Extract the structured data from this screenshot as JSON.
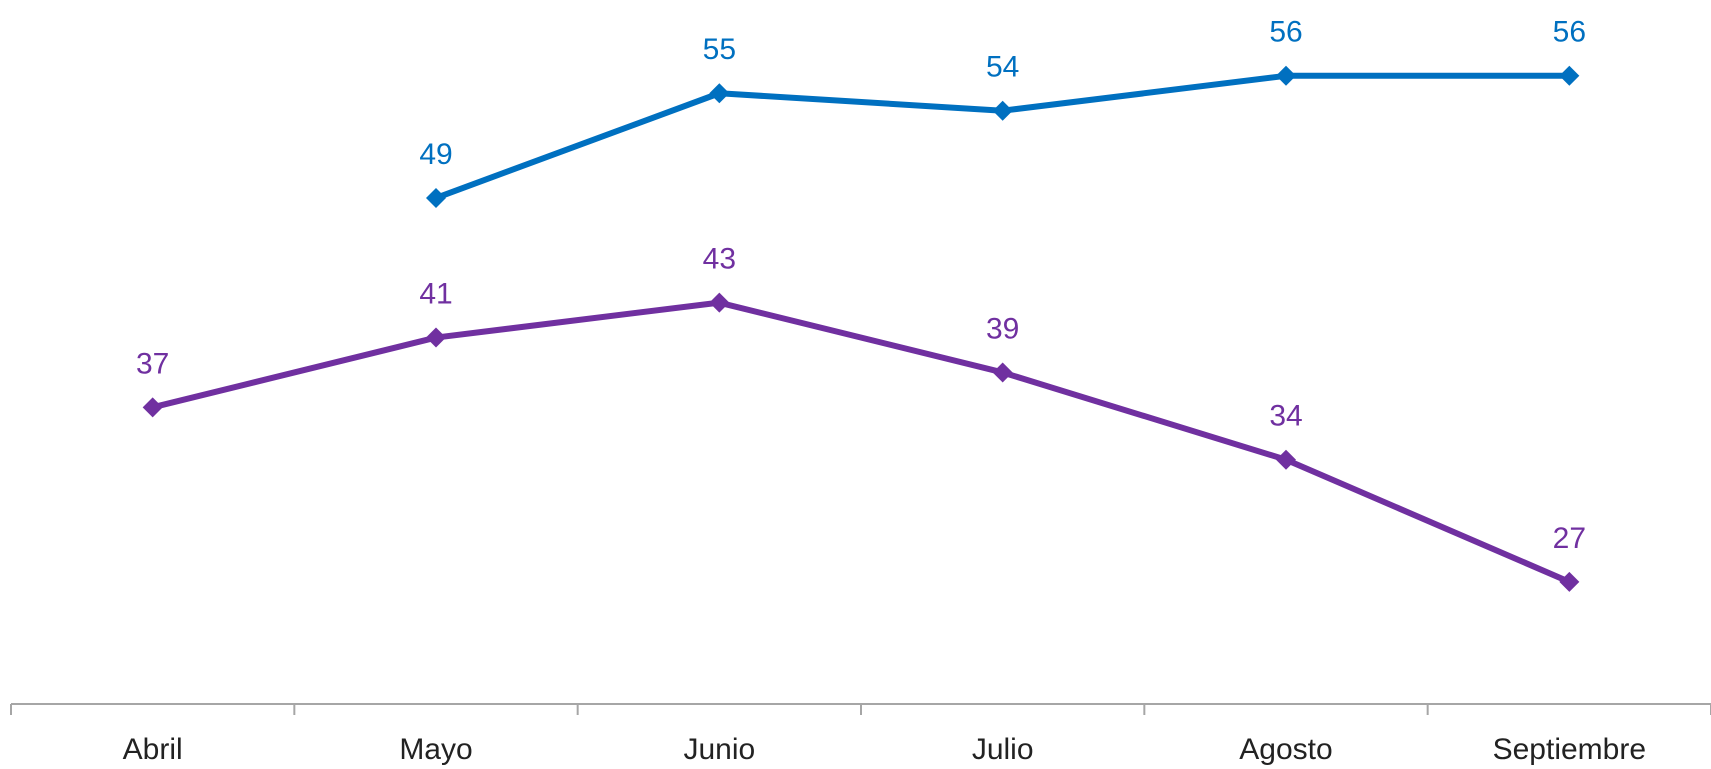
{
  "chart_data": {
    "type": "line",
    "categories": [
      "Abril",
      "Mayo",
      "Junio",
      "Julio",
      "Agosto",
      "Septiembre"
    ],
    "series": [
      {
        "color": "#0070c0",
        "values": [
          null,
          49,
          55,
          54,
          56,
          56
        ]
      },
      {
        "color": "#7030a0",
        "values": [
          37,
          41,
          43,
          39,
          34,
          27
        ]
      }
    ],
    "ylim": [
      20,
      60
    ],
    "data_labels": true
  }
}
